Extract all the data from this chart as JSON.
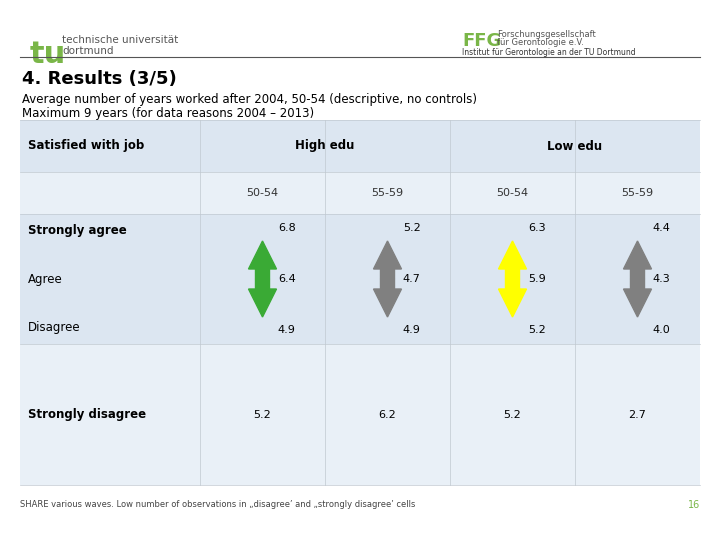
{
  "title": "4. Results (3/5)",
  "subtitle_line1": "Average number of years worked after 2004, 50-54 (descriptive, no controls)",
  "subtitle_line2": "Maximum 9 years (for data reasons 2004 – 2013)",
  "header_col": "Satisfied with job",
  "header_highedu": "High edu",
  "header_lowedu": "Low edu",
  "subheader": [
    "50-54",
    "55-59",
    "50-54",
    "55-59"
  ],
  "rows": [
    {
      "label": "Strongly agree",
      "bold": true,
      "values": [
        6.8,
        5.2,
        6.3,
        4.4
      ]
    },
    {
      "label": "Agree",
      "bold": false,
      "values": [
        6.4,
        4.7,
        5.9,
        4.3
      ]
    },
    {
      "label": "Disagree",
      "bold": false,
      "values": [
        4.9,
        4.9,
        5.2,
        4.0
      ]
    },
    {
      "label": "Strongly disagree",
      "bold": true,
      "values": [
        5.2,
        6.2,
        5.2,
        2.7
      ]
    }
  ],
  "arrow_colors": [
    "#3aaa35",
    "#808080",
    "#ffff00",
    "#808080"
  ],
  "footnote": "SHARE various waves. Low number of observations in „disagree’ and „strongly disagree’ cells",
  "page_number": "16",
  "bg_color": "#ffffff",
  "table_row_colors": [
    "#dce6f1",
    "#e9f0f7",
    "#dce6f1",
    "#e9f0f7",
    "#dce6f1",
    "#e9f0f7"
  ],
  "separator_color": "#c0c8d0",
  "text_color": "#000000",
  "footnote_color": "#444444",
  "page_num_color": "#7ab648",
  "tu_green": "#7ab648",
  "header_separator_color": "#555555"
}
